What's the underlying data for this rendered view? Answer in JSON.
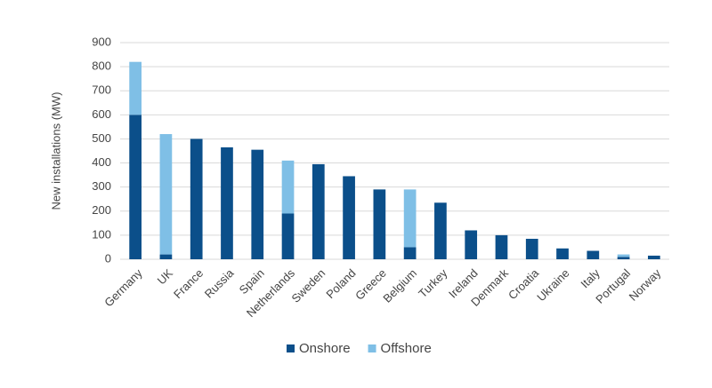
{
  "chart_data": {
    "type": "stacked_bar",
    "y_label": "New installations (MW)",
    "categories": [
      "Germany",
      "UK",
      "France",
      "Russia",
      "Spain",
      "Netherlands",
      "Sweden",
      "Poland",
      "Greece",
      "Belgium",
      "Turkey",
      "Ireland",
      "Denmark",
      "Croatia",
      "Ukraine",
      "Italy",
      "Portugal",
      "Norway"
    ],
    "series": [
      {
        "name": "Onshore",
        "color": "#0b4f8a",
        "values": [
          600,
          20,
          500,
          465,
          455,
          190,
          395,
          345,
          290,
          50,
          235,
          120,
          100,
          85,
          45,
          35,
          10,
          15
        ]
      },
      {
        "name": "Offshore",
        "color": "#7fbfe6",
        "values": [
          220,
          500,
          0,
          0,
          0,
          220,
          0,
          0,
          0,
          240,
          0,
          0,
          0,
          0,
          0,
          0,
          10,
          0
        ]
      }
    ],
    "ylim": [
      0,
      900
    ],
    "yticks": [
      0,
      100,
      200,
      300,
      400,
      500,
      600,
      700,
      800,
      900
    ],
    "grid": true,
    "legend": "bottom"
  }
}
